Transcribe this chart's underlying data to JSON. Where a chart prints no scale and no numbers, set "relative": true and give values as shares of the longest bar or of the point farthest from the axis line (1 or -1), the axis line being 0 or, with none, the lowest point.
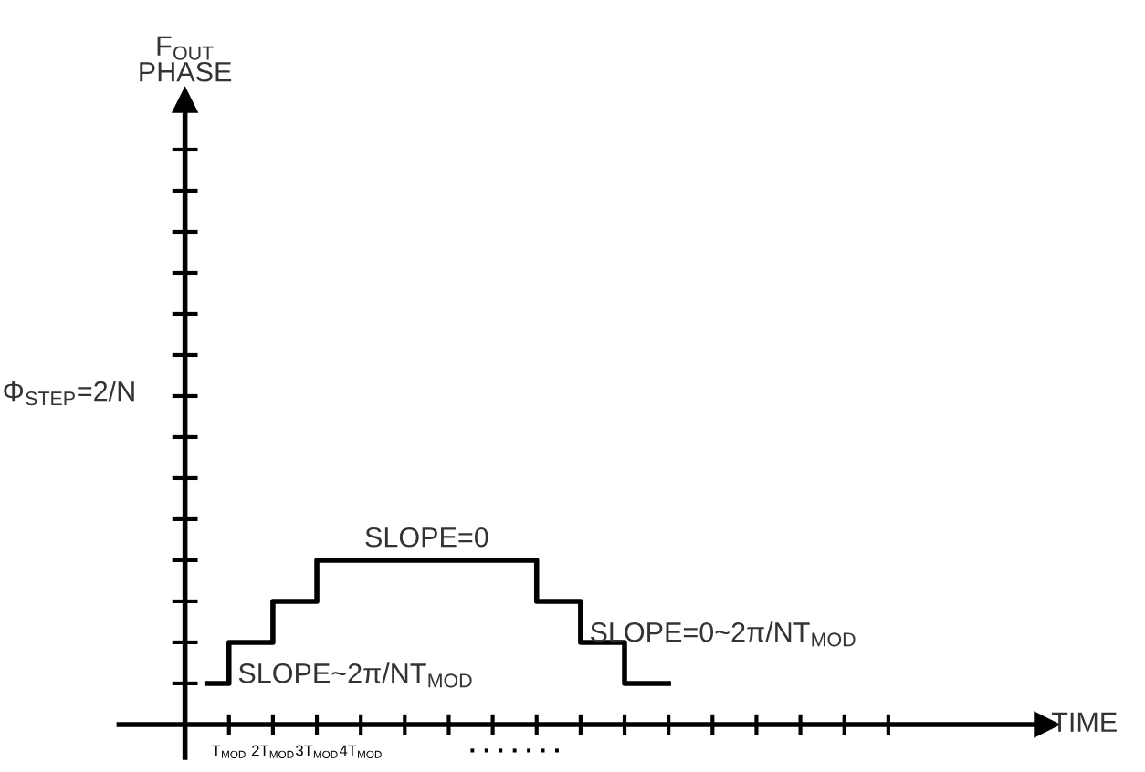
{
  "chart_data": {
    "type": "step",
    "relative": true,
    "xlabel": "TIME",
    "x": [
      0.5,
      1,
      2,
      3,
      8,
      9,
      10,
      11
    ],
    "series": [
      {
        "color": "#000000",
        "values": [
          0.25,
          0.5,
          0.75,
          1,
          0.75,
          0.5,
          0.25,
          0.25
        ]
      }
    ],
    "xlim": [
      -1.5,
      19.6
    ],
    "xticks": [
      {
        "value": 1,
        "label": "T$_{MOD}$"
      },
      {
        "value": 2,
        "label": "2T$_{MOD}$"
      },
      {
        "value": 3,
        "label": "3T$_{MOD}$"
      },
      {
        "value": 4,
        "label": "4T$_{MOD}$"
      },
      {
        "value": 5,
        "label": null
      },
      {
        "value": 6,
        "label": null
      },
      {
        "value": 7,
        "label": null
      },
      {
        "value": 8,
        "label": null
      },
      {
        "value": 9,
        "label": null
      },
      {
        "value": 10,
        "label": null
      },
      {
        "value": 11,
        "label": null
      },
      {
        "value": 12,
        "label": null
      },
      {
        "value": 13,
        "label": null
      },
      {
        "value": 14,
        "label": null
      },
      {
        "value": 15,
        "label": null
      },
      {
        "value": 16,
        "label": null
      }
    ],
    "annotations": [
      {
        "text": "SLOPE=0",
        "x": 5.5,
        "y": 1
      },
      {
        "text": "SLOPE~2π/NT$_{MOD}$",
        "x": 1.2,
        "y": 0.25
      },
      {
        "text": "SLOPE=0~2π/NT$_{MOD}$",
        "x": 9.2,
        "y": 0.5
      },
      "Φ$_{STEP}$=2/N",
      "F$_{OUT}$\nPHASE",
      ". . . . . . ."
    ],
    "grid": false,
    "marker": "none",
    "line_style": "solid"
  }
}
